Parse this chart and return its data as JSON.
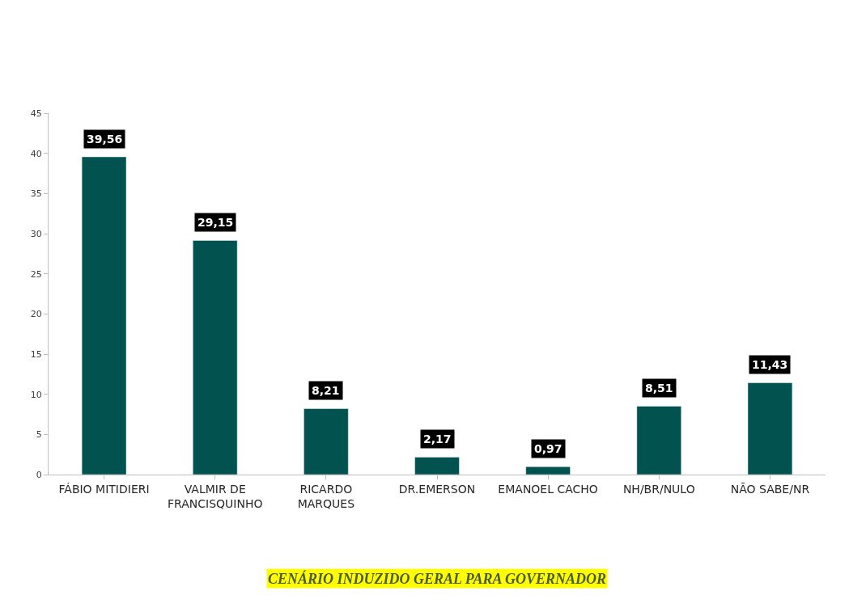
{
  "chart_data": {
    "type": "bar",
    "title": "CENÁRIO INDUZIDO GERAL PARA GOVERNADOR",
    "categories": [
      "FÁBIO MITIDIERI",
      "VALMIR DE\nFRANCISQUINHO",
      "RICARDO\nMARQUES",
      "DR.EMERSON",
      "EMANOEL CACHO",
      "NH/BR/NULO",
      "NÃO SABE/NR"
    ],
    "values": [
      39.56,
      29.15,
      8.21,
      2.17,
      0.97,
      8.51,
      11.43
    ],
    "value_labels": [
      "39,56",
      "29,15",
      "8,21",
      "2,17",
      "0,97",
      "8,51",
      "11,43"
    ],
    "color": "#02534f",
    "ylim": [
      0,
      45
    ],
    "yticks": [
      0,
      5,
      10,
      15,
      20,
      25,
      30,
      35,
      40,
      45
    ]
  }
}
